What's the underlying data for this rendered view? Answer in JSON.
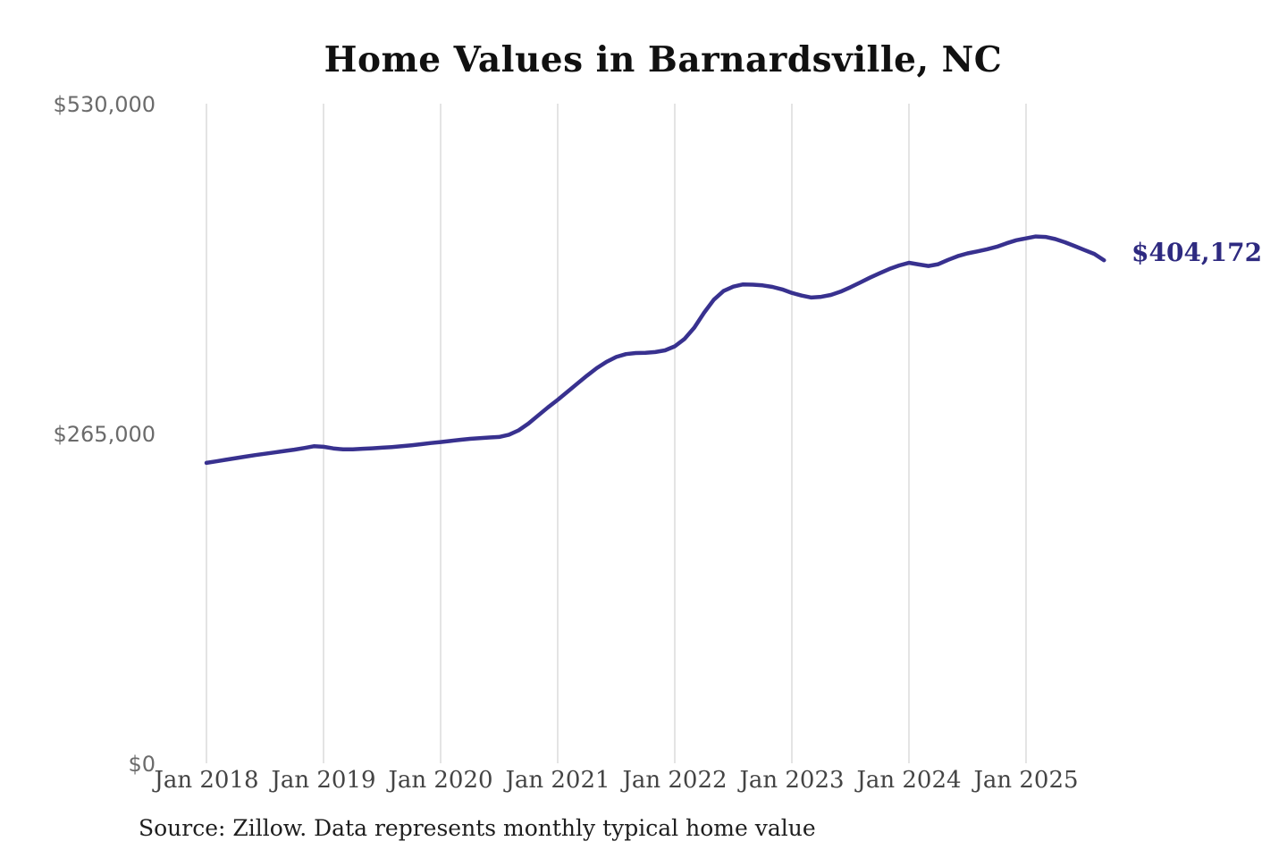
{
  "title": "Home Values in Barnardsville, NC",
  "source_note": "Source: Zillow. Data represents monthly typical home value",
  "latest_value_label": "$404,172",
  "colors": {
    "background": "#FFFFFF",
    "title_text": "#111111",
    "line": "#38318F",
    "annotation_text": "#2E2A80",
    "gridline": "#C9C9C9",
    "x_tick_text": "#444444",
    "y_tick_text": "#6B6B6B",
    "source_text": "#1E1E1E"
  },
  "chart_data": {
    "type": "line",
    "title": "Home Values in Barnardsville, NC",
    "series_name": "Monthly typical home value",
    "xlabel": "",
    "ylabel": "",
    "ylim": [
      0,
      530000
    ],
    "grid": "vertical-only",
    "legend": "none",
    "y_ticks": [
      {
        "label": "$0",
        "value": 0
      },
      {
        "label": "$265,000",
        "value": 265000
      },
      {
        "label": "$530,000",
        "value": 530000
      }
    ],
    "x_ticks": [
      {
        "label": "Jan 2018",
        "month_index": 0
      },
      {
        "label": "Jan 2019",
        "month_index": 12
      },
      {
        "label": "Jan 2020",
        "month_index": 24
      },
      {
        "label": "Jan 2021",
        "month_index": 36
      },
      {
        "label": "Jan 2022",
        "month_index": 48
      },
      {
        "label": "Jan 2023",
        "month_index": 60
      },
      {
        "label": "Jan 2024",
        "month_index": 72
      },
      {
        "label": "Jan 2025",
        "month_index": 84
      }
    ],
    "x": [
      "2018-01",
      "2018-02",
      "2018-03",
      "2018-04",
      "2018-05",
      "2018-06",
      "2018-07",
      "2018-08",
      "2018-09",
      "2018-10",
      "2018-11",
      "2018-12",
      "2019-01",
      "2019-02",
      "2019-03",
      "2019-04",
      "2019-05",
      "2019-06",
      "2019-07",
      "2019-08",
      "2019-09",
      "2019-10",
      "2019-11",
      "2019-12",
      "2020-01",
      "2020-02",
      "2020-03",
      "2020-04",
      "2020-05",
      "2020-06",
      "2020-07",
      "2020-08",
      "2020-09",
      "2020-10",
      "2020-11",
      "2020-12",
      "2021-01",
      "2021-02",
      "2021-03",
      "2021-04",
      "2021-05",
      "2021-06",
      "2021-07",
      "2021-08",
      "2021-09",
      "2021-10",
      "2021-11",
      "2021-12",
      "2022-01",
      "2022-02",
      "2022-03",
      "2022-04",
      "2022-05",
      "2022-06",
      "2022-07",
      "2022-08",
      "2022-09",
      "2022-10",
      "2022-11",
      "2022-12",
      "2023-01",
      "2023-02",
      "2023-03",
      "2023-04",
      "2023-05",
      "2023-06",
      "2023-07",
      "2023-08",
      "2023-09",
      "2023-10",
      "2023-11",
      "2023-12",
      "2024-01",
      "2024-02",
      "2024-03",
      "2024-04",
      "2024-05",
      "2024-06",
      "2024-07",
      "2024-08",
      "2024-09",
      "2024-10",
      "2024-11",
      "2024-12",
      "2025-01",
      "2025-02",
      "2025-03",
      "2025-04",
      "2025-05",
      "2025-06",
      "2025-07",
      "2025-08",
      "2025-09"
    ],
    "values": [
      241400,
      242600,
      243900,
      245200,
      246400,
      247600,
      248700,
      249800,
      250900,
      252000,
      253300,
      254700,
      254300,
      253000,
      252200,
      252300,
      252700,
      253100,
      253600,
      254100,
      254700,
      255500,
      256400,
      257300,
      258100,
      259000,
      259900,
      260700,
      261300,
      261800,
      262200,
      264000,
      267500,
      273000,
      279500,
      286000,
      292000,
      298500,
      305000,
      311500,
      317500,
      322500,
      326500,
      328800,
      329600,
      329800,
      330400,
      331800,
      335000,
      341000,
      350000,
      362000,
      372500,
      379500,
      383000,
      384800,
      384600,
      384000,
      382800,
      380800,
      378000,
      375800,
      374200,
      374800,
      376300,
      379000,
      382500,
      386300,
      390200,
      393800,
      397200,
      400000,
      402200,
      400800,
      399600,
      401000,
      404500,
      407500,
      409700,
      411300,
      413000,
      415000,
      417800,
      420300,
      421800,
      423300,
      422900,
      421200,
      418600,
      415500,
      412400,
      409300,
      404172
    ],
    "annotation": {
      "text": "$404,172",
      "value": 404172,
      "position": "line-end"
    }
  }
}
